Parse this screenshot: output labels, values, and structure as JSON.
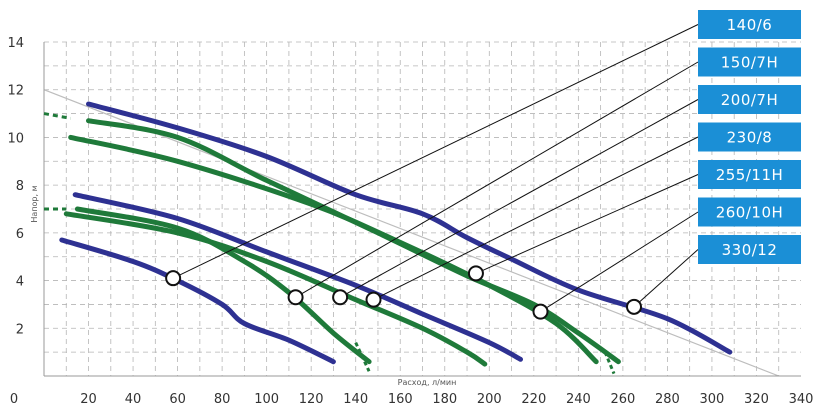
{
  "chart_data": {
    "type": "line",
    "xlabel": "Расход, л/мин",
    "ylabel": "Напор, м",
    "xlim": [
      0,
      340
    ],
    "ylim": [
      0,
      14
    ],
    "x_ticks": [
      0,
      20,
      40,
      60,
      80,
      100,
      120,
      140,
      160,
      180,
      200,
      220,
      240,
      260,
      280,
      300,
      320,
      340
    ],
    "y_ticks": [
      2,
      4,
      6,
      8,
      10,
      12,
      14
    ],
    "grid": true,
    "colors": {
      "blue": "#2e3192",
      "green": "#1f7a3a",
      "legend_box": "#1b8fd6",
      "leader": "#111111"
    },
    "series": [
      {
        "color": "blue",
        "points": [
          [
            20,
            11.4
          ],
          [
            60,
            10.4
          ],
          [
            100,
            9.2
          ],
          [
            140,
            7.6
          ],
          [
            170,
            6.8
          ],
          [
            190,
            5.8
          ],
          [
            210,
            4.9
          ],
          [
            240,
            3.6
          ],
          [
            280,
            2.4
          ],
          [
            308,
            1.0
          ]
        ]
      },
      {
        "color": "green",
        "points": [
          [
            20,
            10.7
          ],
          [
            60,
            10.0
          ],
          [
            100,
            8.2
          ],
          [
            150,
            6.0
          ],
          [
            190,
            4.2
          ],
          [
            220,
            3.0
          ],
          [
            240,
            1.8
          ],
          [
            258,
            0.6
          ]
        ]
      },
      {
        "color": "green",
        "points": [
          [
            12,
            10.0
          ],
          [
            60,
            9.0
          ],
          [
            120,
            7.2
          ],
          [
            160,
            5.6
          ],
          [
            200,
            3.8
          ],
          [
            230,
            2.2
          ],
          [
            248,
            0.6
          ]
        ]
      },
      {
        "color": "blue",
        "points": [
          [
            14,
            7.6
          ],
          [
            60,
            6.6
          ],
          [
            100,
            5.2
          ],
          [
            140,
            3.8
          ],
          [
            170,
            2.6
          ],
          [
            200,
            1.4
          ],
          [
            214,
            0.7
          ]
        ]
      },
      {
        "color": "green",
        "points": [
          [
            15,
            7.0
          ],
          [
            60,
            6.2
          ],
          [
            90,
            4.8
          ],
          [
            110,
            3.5
          ],
          [
            130,
            1.8
          ],
          [
            146,
            0.6
          ]
        ]
      },
      {
        "color": "green",
        "points": [
          [
            10,
            6.8
          ],
          [
            60,
            6.0
          ],
          [
            100,
            4.8
          ],
          [
            140,
            3.2
          ],
          [
            170,
            2.0
          ],
          [
            190,
            1.0
          ],
          [
            198,
            0.5
          ]
        ]
      },
      {
        "color": "blue",
        "points": [
          [
            8,
            5.7
          ],
          [
            40,
            4.8
          ],
          [
            60,
            4.0
          ],
          [
            80,
            3.0
          ],
          [
            90,
            2.2
          ],
          [
            110,
            1.5
          ],
          [
            130,
            0.6
          ]
        ]
      }
    ],
    "legend_items": [
      {
        "label": "140/6",
        "marker": [
          58,
          4.1
        ]
      },
      {
        "label": "150/7H",
        "marker": [
          113,
          3.3
        ]
      },
      {
        "label": "200/7H",
        "marker": [
          133,
          3.3
        ]
      },
      {
        "label": "230/8",
        "marker": [
          148,
          3.2
        ]
      },
      {
        "label": "255/11H",
        "marker": [
          194,
          4.3
        ]
      },
      {
        "label": "260/10H",
        "marker": [
          223,
          2.7
        ]
      },
      {
        "label": "330/12",
        "marker": [
          265,
          2.9
        ]
      }
    ]
  }
}
